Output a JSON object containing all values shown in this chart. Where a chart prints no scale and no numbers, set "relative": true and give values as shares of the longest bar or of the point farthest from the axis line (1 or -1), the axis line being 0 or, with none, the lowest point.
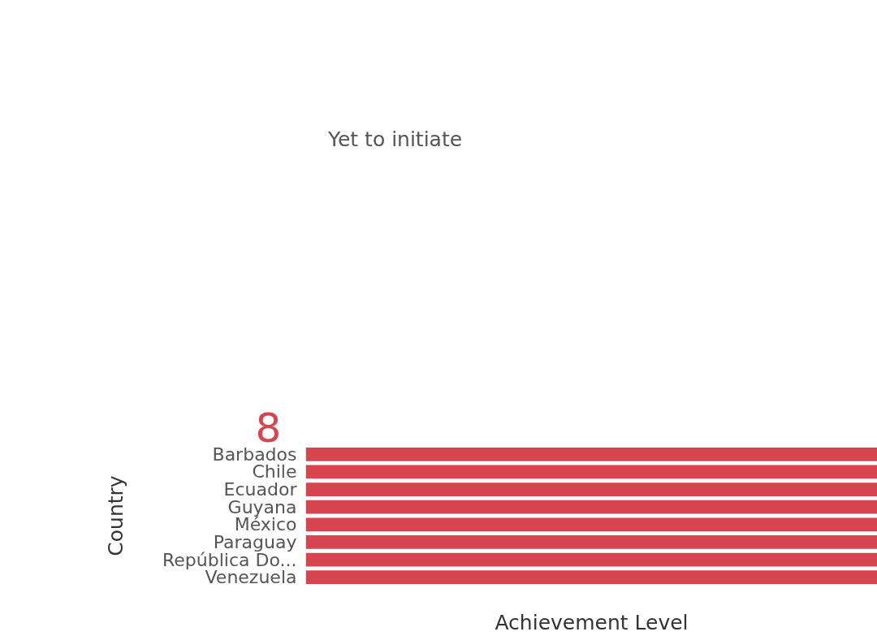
{
  "chart_data": {
    "type": "bar",
    "orientation": "horizontal",
    "relative": true,
    "categories": [
      "Barbados",
      "Chile",
      "Ecuador",
      "Guyana",
      "México",
      "Paraguay",
      "República Do...",
      "Venezuela"
    ],
    "series": [
      {
        "name": "Yet to initiate",
        "color": "#d64550",
        "values": [
          1,
          1,
          1,
          1,
          1,
          1,
          1,
          1
        ]
      }
    ],
    "xlabel": "Achievement Level",
    "ylabel": "Country",
    "legend": "top left",
    "marker": "circle",
    "annotations": [
      "8"
    ]
  }
}
